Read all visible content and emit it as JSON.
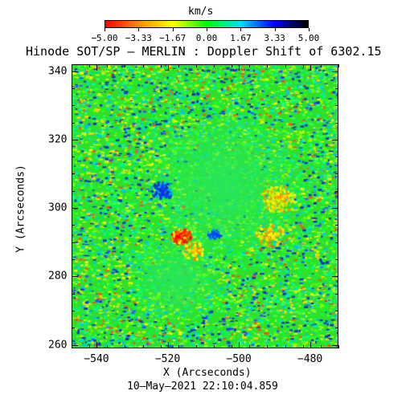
{
  "colorbar": {
    "unit": "km/s",
    "ticks": [
      "−5.00",
      "−3.33",
      "−1.67",
      "0.00",
      "1.67",
      "3.33",
      "5.00"
    ],
    "colors": [
      "#ff0000",
      "#ff8c00",
      "#ffff00",
      "#00ff00",
      "#00e0ff",
      "#0000ff",
      "#000000"
    ]
  },
  "title": "Hinode SOT/SP – MERLIN : Doppler Shift of 6302.15",
  "x_axis": {
    "label": "X (Arcseconds)",
    "ticks": [
      "−540",
      "−520",
      "−500",
      "−480"
    ],
    "tick_values": [
      -540,
      -520,
      -500,
      -480
    ],
    "range": [
      -547,
      -472
    ]
  },
  "y_axis": {
    "label": "Y (Arcseconds)",
    "ticks": [
      "340",
      "320",
      "300",
      "280",
      "260"
    ],
    "tick_values": [
      340,
      320,
      300,
      280,
      260
    ],
    "range": [
      259,
      342
    ]
  },
  "timestamp": "10–May–2021 22:10:04.859",
  "image": {
    "background_color": "#2ee02a",
    "description_colors": {
      "redshift": "#ff2a00",
      "blueshift": "#1030c8"
    }
  }
}
